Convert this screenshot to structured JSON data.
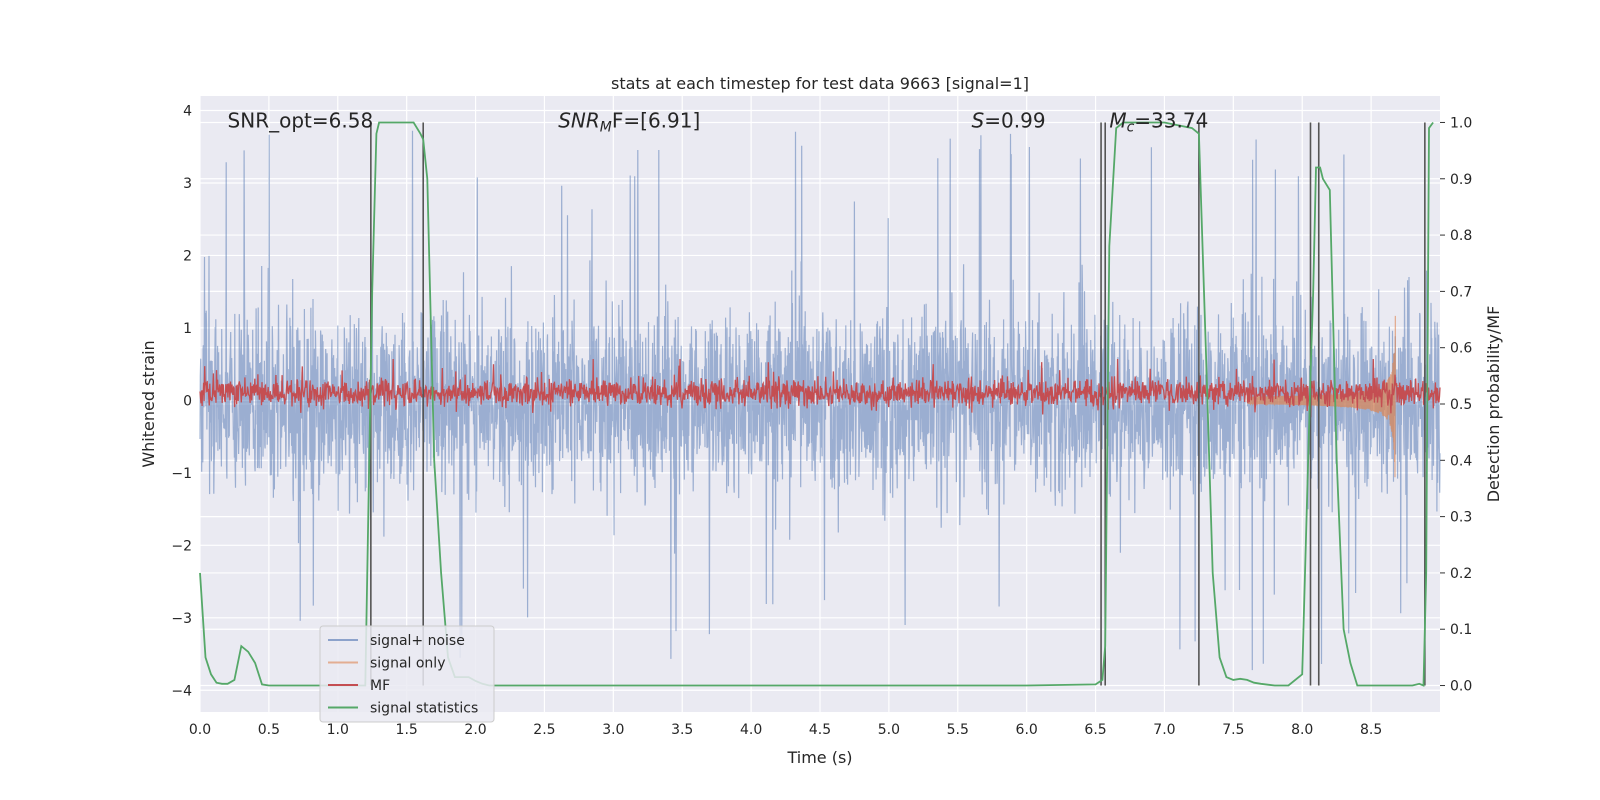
{
  "chart_data": {
    "type": "line",
    "title": "stats at each timestep for test data 9663 [signal=1]",
    "xlabel": "Time (s)",
    "ylabel": "Whitened strain",
    "ylabel_right": "Detection probability/MF",
    "xlim": [
      0,
      9.0
    ],
    "ylim": [
      -4.3,
      4.2
    ],
    "ylim_right": [
      -0.047,
      1.047
    ],
    "x_ticks": [
      "0.0",
      "0.5",
      "1.0",
      "1.5",
      "2.0",
      "2.5",
      "3.0",
      "3.5",
      "4.0",
      "4.5",
      "5.0",
      "5.5",
      "6.0",
      "6.5",
      "7.0",
      "7.5",
      "8.0",
      "8.5"
    ],
    "y_ticks": [
      "−4",
      "−3",
      "−2",
      "−1",
      "0",
      "1",
      "2",
      "3",
      "4"
    ],
    "y_ticks_right": [
      "0.0",
      "0.1",
      "0.2",
      "0.3",
      "0.4",
      "0.5",
      "0.6",
      "0.7",
      "0.8",
      "0.9",
      "1.0"
    ],
    "grid": true,
    "legend_position": "lower-left",
    "annotations": [
      {
        "label": "SNR_opt=6.58",
        "x": 0.2,
        "y": 3.85
      },
      {
        "label": "SNR",
        "sub": "M",
        "suffix": "F=[6.91]",
        "x": 2.6,
        "y": 3.85
      },
      {
        "label": "S",
        "suffix": "=0.99",
        "x": 5.6,
        "y": 3.85
      },
      {
        "label": "M",
        "sub": "c",
        "suffix": "=33.74",
        "x": 6.6,
        "y": 3.85
      }
    ],
    "series": [
      {
        "name": "signal+ noise",
        "color": "#4c72b0",
        "style": "noise",
        "envelope_min": -2.3,
        "envelope_max": 2.2,
        "peak_max": 3.8,
        "peak_min": -3.9
      },
      {
        "name": "signal only",
        "color": "#dd8452",
        "style": "chirp",
        "t_merge": 8.68,
        "peak_amplitude": 1.6
      },
      {
        "name": "MF",
        "color": "#c44e52",
        "axis": "right",
        "baseline": 0.52,
        "spread": 0.025,
        "peak_value": 0.58
      },
      {
        "name": "signal statistics",
        "color": "#55a868",
        "axis": "right",
        "x": [
          0.0,
          0.04,
          0.08,
          0.12,
          0.16,
          0.2,
          0.25,
          0.3,
          0.35,
          0.4,
          0.45,
          0.5,
          0.6,
          0.8,
          1.0,
          1.2,
          1.25,
          1.28,
          1.3,
          1.35,
          1.4,
          1.5,
          1.55,
          1.6,
          1.62,
          1.65,
          1.7,
          1.75,
          1.8,
          1.85,
          1.9,
          1.95,
          2.0,
          2.05,
          2.1,
          2.5,
          3.0,
          4.0,
          5.0,
          6.0,
          6.5,
          6.55,
          6.57,
          6.6,
          6.65,
          6.7,
          6.8,
          7.0,
          7.2,
          7.25,
          7.3,
          7.35,
          7.4,
          7.45,
          7.5,
          7.55,
          7.6,
          7.65,
          7.7,
          7.8,
          7.9,
          8.0,
          8.06,
          8.08,
          8.1,
          8.13,
          8.15,
          8.2,
          8.25,
          8.3,
          8.35,
          8.4,
          8.5,
          8.6,
          8.7,
          8.8,
          8.85,
          8.88,
          8.9,
          8.92,
          8.95
        ],
        "y": [
          0.2,
          0.05,
          0.02,
          0.005,
          0.003,
          0.003,
          0.01,
          0.07,
          0.06,
          0.04,
          0.002,
          0.0,
          0.0,
          0.0,
          0.0,
          0.0,
          0.7,
          0.98,
          1.0,
          1.0,
          1.0,
          1.0,
          1.0,
          0.98,
          0.97,
          0.9,
          0.4,
          0.2,
          0.05,
          0.015,
          0.015,
          0.015,
          0.008,
          0.003,
          0.0,
          0.0,
          0.0,
          0.0,
          0.0,
          0.0,
          0.002,
          0.01,
          0.07,
          0.78,
          0.99,
          1.0,
          1.0,
          1.0,
          0.99,
          0.98,
          0.6,
          0.2,
          0.05,
          0.015,
          0.01,
          0.012,
          0.01,
          0.005,
          0.003,
          0.0,
          0.0,
          0.02,
          0.55,
          0.7,
          0.92,
          0.92,
          0.9,
          0.88,
          0.4,
          0.1,
          0.04,
          0.0,
          0.0,
          0.0,
          0.0,
          0.0,
          0.003,
          0.0,
          0.2,
          0.99,
          1.0
        ]
      }
    ],
    "vertical_markers": {
      "color": "#555555",
      "x": [
        1.24,
        1.62,
        6.54,
        6.57,
        7.25,
        8.06,
        8.12,
        8.89
      ]
    }
  }
}
